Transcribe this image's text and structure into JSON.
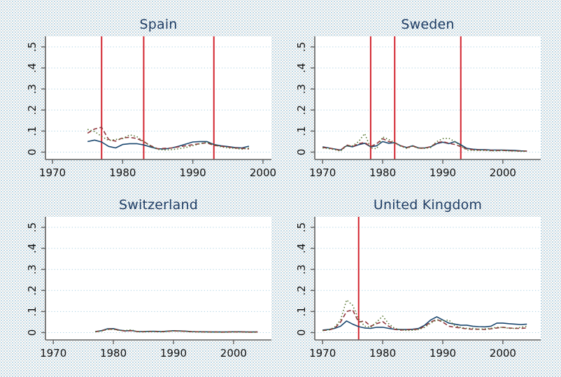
{
  "figure": {
    "kind": "stata-style multi-panel time-series figure",
    "background_tint": "#eaf2f3",
    "plot_background": "#ffffff",
    "axis_color": "#606060",
    "grid_color": "#a8cfe0",
    "tick_label_color": "#111111",
    "title_color": "#1e3c63",
    "event_line_color": "#d2232e"
  },
  "chart_data": [
    {
      "type": "line",
      "title": "Spain",
      "x_years": {
        "from": 1975,
        "to": 1998,
        "step": 1
      },
      "xlim": [
        1969.0,
        2001.2
      ],
      "ylim": [
        -0.035,
        0.55
      ],
      "xticks": [
        1970,
        1980,
        1990,
        2000
      ],
      "yticks": [
        0,
        0.1,
        0.2,
        0.3,
        0.4,
        0.5
      ],
      "ytick_labels": [
        "0",
        ".1",
        ".2",
        ".3",
        ".4",
        ".5"
      ],
      "grid": "horizontal-dotted",
      "legend": "none",
      "event_line_years": [
        1977,
        1983,
        1993
      ],
      "series": [
        {
          "name": "navy-solid",
          "color": "#1a476f",
          "style": "solid",
          "values": [
            0.05,
            0.057,
            0.048,
            0.027,
            0.02,
            0.036,
            0.04,
            0.04,
            0.034,
            0.024,
            0.016,
            0.015,
            0.02,
            0.028,
            0.038,
            0.048,
            0.05,
            0.05,
            0.036,
            0.03,
            0.026,
            0.022,
            0.02,
            0.028
          ]
        },
        {
          "name": "maroon-dash",
          "color": "#90353b",
          "style": "dash",
          "values": [
            0.09,
            0.11,
            0.118,
            0.06,
            0.052,
            0.068,
            0.07,
            0.065,
            0.05,
            0.03,
            0.016,
            0.018,
            0.02,
            0.025,
            0.03,
            0.035,
            0.04,
            0.044,
            0.032,
            0.028,
            0.024,
            0.02,
            0.018,
            0.015
          ]
        },
        {
          "name": "green-dot",
          "color": "#55752f",
          "style": "dot",
          "values": [
            0.108,
            0.098,
            0.075,
            0.055,
            0.06,
            0.064,
            0.082,
            0.074,
            0.05,
            0.028,
            0.013,
            0.01,
            0.012,
            0.016,
            0.022,
            0.03,
            0.04,
            0.046,
            0.036,
            0.025,
            0.02,
            0.018,
            0.014,
            0.02
          ]
        }
      ]
    },
    {
      "type": "line",
      "title": "Sweden",
      "x_years": {
        "from": 1970,
        "to": 2004,
        "step": 1
      },
      "xlim": [
        1968.7,
        2006.3
      ],
      "ylim": [
        -0.035,
        0.55
      ],
      "xticks": [
        1970,
        1980,
        1990,
        2000
      ],
      "yticks": [
        0,
        0.1,
        0.2,
        0.3,
        0.4,
        0.5
      ],
      "ytick_labels": [
        "0",
        ".1",
        ".2",
        ".3",
        ".4",
        ".5"
      ],
      "grid": "horizontal-dotted",
      "legend": "none",
      "event_line_years": [
        1978,
        1982,
        1993
      ],
      "series": [
        {
          "name": "navy-solid",
          "color": "#1a476f",
          "style": "solid",
          "values": [
            0.025,
            0.02,
            0.015,
            0.01,
            0.03,
            0.025,
            0.035,
            0.042,
            0.025,
            0.03,
            0.05,
            0.042,
            0.045,
            0.03,
            0.022,
            0.03,
            0.02,
            0.02,
            0.025,
            0.04,
            0.047,
            0.04,
            0.05,
            0.035,
            0.018,
            0.014,
            0.012,
            0.012,
            0.01,
            0.01,
            0.01,
            0.009,
            0.008,
            0.006,
            0.005
          ]
        },
        {
          "name": "maroon-dash",
          "color": "#90353b",
          "style": "dash",
          "values": [
            0.022,
            0.02,
            0.014,
            0.008,
            0.034,
            0.026,
            0.04,
            0.046,
            0.026,
            0.04,
            0.064,
            0.05,
            0.044,
            0.03,
            0.021,
            0.029,
            0.019,
            0.019,
            0.026,
            0.044,
            0.05,
            0.042,
            0.036,
            0.026,
            0.015,
            0.012,
            0.01,
            0.01,
            0.008,
            0.008,
            0.008,
            0.007,
            0.006,
            0.005,
            0.005
          ]
        },
        {
          "name": "green-dot",
          "color": "#55752f",
          "style": "dot",
          "values": [
            0.02,
            0.017,
            0.012,
            0.005,
            0.03,
            0.03,
            0.05,
            0.088,
            0.02,
            0.016,
            0.072,
            0.06,
            0.044,
            0.028,
            0.018,
            0.028,
            0.018,
            0.018,
            0.022,
            0.05,
            0.064,
            0.066,
            0.05,
            0.03,
            0.01,
            0.008,
            0.008,
            0.008,
            0.006,
            0.006,
            0.008,
            0.006,
            0.005,
            0.004,
            0.004
          ]
        }
      ]
    },
    {
      "type": "line",
      "title": "Switzerland",
      "x_years": {
        "from": 1977,
        "to": 2004,
        "step": 1
      },
      "xlim": [
        1968.7,
        2006.3
      ],
      "ylim": [
        -0.035,
        0.55
      ],
      "xticks": [
        1970,
        1980,
        1990,
        2000
      ],
      "yticks": [
        0,
        0.1,
        0.2,
        0.3,
        0.4,
        0.5
      ],
      "ytick_labels": [
        "0",
        ".1",
        ".2",
        ".3",
        ".4",
        ".5"
      ],
      "grid": "horizontal-dotted",
      "legend": "none",
      "event_line_years": [],
      "series": [
        {
          "name": "navy-solid",
          "color": "#1a476f",
          "style": "solid",
          "values": [
            0.005,
            0.009,
            0.018,
            0.019,
            0.012,
            0.008,
            0.01,
            0.005,
            0.005,
            0.006,
            0.006,
            0.005,
            0.007,
            0.009,
            0.008,
            0.007,
            0.005,
            0.004,
            0.004,
            0.003,
            0.003,
            0.003,
            0.003,
            0.004,
            0.004,
            0.003,
            0.003,
            0.003
          ]
        },
        {
          "name": "maroon-dash",
          "color": "#90353b",
          "style": "dash",
          "values": [
            0.004,
            0.008,
            0.016,
            0.017,
            0.011,
            0.007,
            0.009,
            0.005,
            0.004,
            0.005,
            0.005,
            0.004,
            0.006,
            0.008,
            0.007,
            0.006,
            0.004,
            0.004,
            0.003,
            0.003,
            0.003,
            0.002,
            0.003,
            0.003,
            0.003,
            0.003,
            0.002,
            0.003
          ]
        },
        {
          "name": "green-dot",
          "color": "#55752f",
          "style": "dot",
          "values": [
            0.004,
            0.007,
            0.015,
            0.016,
            0.01,
            0.01,
            0.013,
            0.004,
            0.004,
            0.005,
            0.005,
            0.004,
            0.006,
            0.008,
            0.007,
            0.006,
            0.004,
            0.003,
            0.003,
            0.002,
            0.002,
            0.002,
            0.002,
            0.003,
            0.003,
            0.002,
            0.002,
            0.002
          ]
        }
      ]
    },
    {
      "type": "line",
      "title": "United Kingdom",
      "x_years": {
        "from": 1970,
        "to": 2004,
        "step": 1
      },
      "xlim": [
        1968.7,
        2006.3
      ],
      "ylim": [
        -0.035,
        0.55
      ],
      "xticks": [
        1970,
        1980,
        1990,
        2000
      ],
      "yticks": [
        0,
        0.1,
        0.2,
        0.3,
        0.4,
        0.5
      ],
      "ytick_labels": [
        "0",
        ".1",
        ".2",
        ".3",
        ".4",
        ".5"
      ],
      "grid": "horizontal-dotted",
      "legend": "none",
      "event_line_years": [
        1976
      ],
      "series": [
        {
          "name": "navy-solid",
          "color": "#1a476f",
          "style": "solid",
          "values": [
            0.012,
            0.015,
            0.02,
            0.03,
            0.055,
            0.04,
            0.028,
            0.022,
            0.02,
            0.025,
            0.025,
            0.02,
            0.016,
            0.015,
            0.015,
            0.016,
            0.02,
            0.035,
            0.06,
            0.075,
            0.06,
            0.045,
            0.04,
            0.035,
            0.035,
            0.03,
            0.028,
            0.027,
            0.03,
            0.045,
            0.045,
            0.042,
            0.04,
            0.038,
            0.04
          ]
        },
        {
          "name": "maroon-dash",
          "color": "#90353b",
          "style": "dash",
          "values": [
            0.01,
            0.012,
            0.02,
            0.05,
            0.1,
            0.108,
            0.05,
            0.055,
            0.03,
            0.042,
            0.052,
            0.03,
            0.015,
            0.012,
            0.014,
            0.015,
            0.016,
            0.03,
            0.05,
            0.062,
            0.05,
            0.03,
            0.025,
            0.022,
            0.018,
            0.016,
            0.016,
            0.015,
            0.018,
            0.022,
            0.025,
            0.022,
            0.02,
            0.02,
            0.022
          ]
        },
        {
          "name": "green-dot",
          "color": "#55752f",
          "style": "dot",
          "values": [
            0.01,
            0.012,
            0.025,
            0.06,
            0.155,
            0.13,
            0.065,
            0.03,
            0.025,
            0.05,
            0.078,
            0.042,
            0.02,
            0.014,
            0.01,
            0.011,
            0.015,
            0.025,
            0.045,
            0.06,
            0.055,
            0.06,
            0.032,
            0.024,
            0.02,
            0.02,
            0.016,
            0.018,
            0.02,
            0.025,
            0.025,
            0.02,
            0.02,
            0.025,
            0.03
          ]
        }
      ]
    }
  ]
}
